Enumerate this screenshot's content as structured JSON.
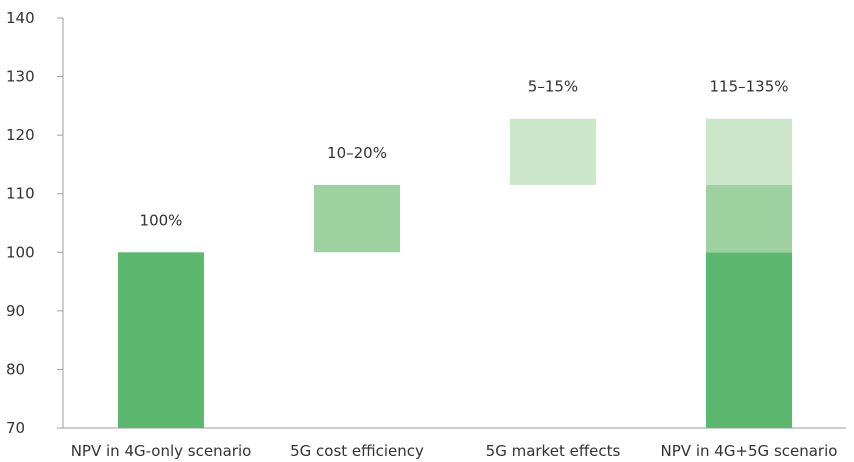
{
  "chart_data": {
    "type": "bar",
    "subtype": "waterfall",
    "categories": [
      "NPV in 4G-only scenario",
      "5G cost efficiency",
      "5G market effects",
      "NPV in 4G+5G scenario"
    ],
    "segments": [
      {
        "category": "NPV in 4G-only scenario",
        "from": 70,
        "to": 100,
        "color": "#5db86f"
      },
      {
        "category": "5G cost efficiency",
        "from": 100,
        "to": 111.5,
        "color": "#9dd19f"
      },
      {
        "category": "5G market effects",
        "from": 111.5,
        "to": 122.8,
        "color": "#cce6ca"
      },
      {
        "category": "NPV in 4G+5G scenario",
        "from": 70,
        "to": 100,
        "color": "#5db86f"
      },
      {
        "category": "NPV in 4G+5G scenario",
        "from": 100,
        "to": 111.5,
        "color": "#9dd19f"
      },
      {
        "category": "NPV in 4G+5G scenario",
        "from": 111.5,
        "to": 122.8,
        "color": "#cce6ca"
      }
    ],
    "data_labels": [
      "100%",
      "10–20%",
      "5–15%",
      "115–135%"
    ],
    "yticks": [
      70,
      80,
      90,
      100,
      110,
      120,
      130,
      140
    ],
    "ylim": [
      70,
      140
    ],
    "grid": false,
    "legend": "none"
  }
}
